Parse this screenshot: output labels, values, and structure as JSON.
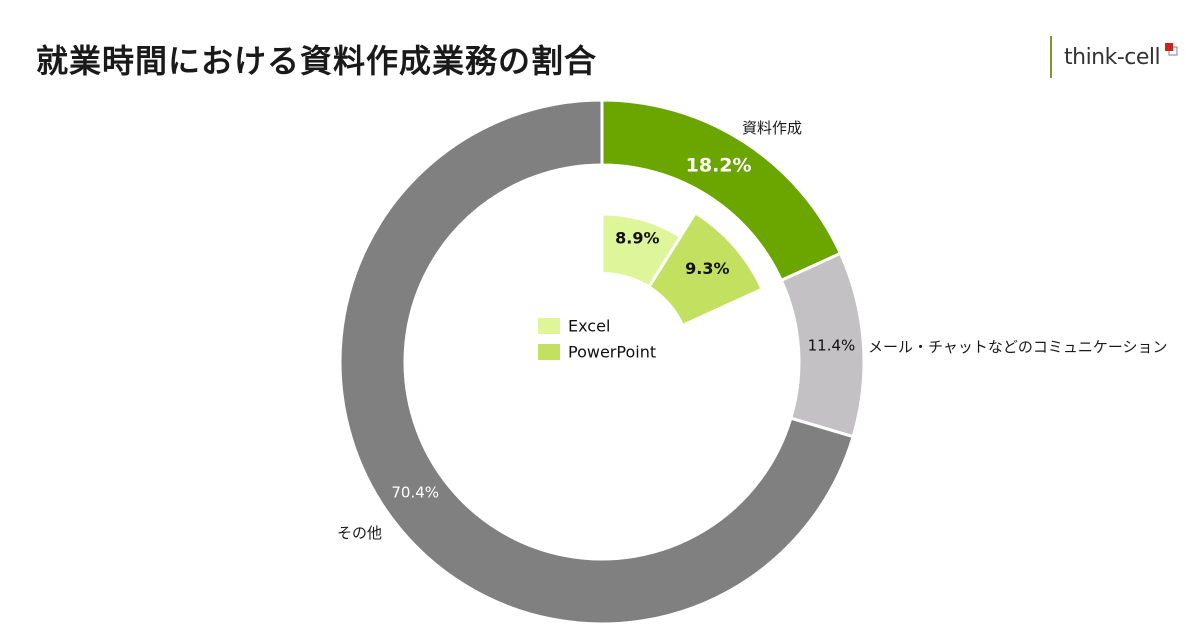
{
  "title": "就業時間における資料作成業務の割合",
  "logo": {
    "text": "think-cell"
  },
  "colors": {
    "doc_creation": "#6aa500",
    "communication": "#c3c1c3",
    "other": "#808080",
    "excel": "#def59a",
    "powerpoint": "#c3e060",
    "label_dark": "#111111",
    "label_light": "#ffffff",
    "logo_line": "#7a9a2a",
    "logo_mark": "#cc2222"
  },
  "chart_data": {
    "type": "pie",
    "subtype": "donut-with-inner-breakdown",
    "outer": [
      {
        "name": "資料作成",
        "value": 18.2,
        "label": "18.2%"
      },
      {
        "name": "メール・チャットなどのコミュニケーション",
        "value": 11.4,
        "label": "11.4%"
      },
      {
        "name": "その他",
        "value": 70.4,
        "label": "70.4%"
      }
    ],
    "inner": [
      {
        "name": "Excel",
        "value": 8.9,
        "label": "8.9%"
      },
      {
        "name": "PowerPoint",
        "value": 9.3,
        "label": "9.3%"
      }
    ],
    "legend": [
      "Excel",
      "PowerPoint"
    ]
  }
}
